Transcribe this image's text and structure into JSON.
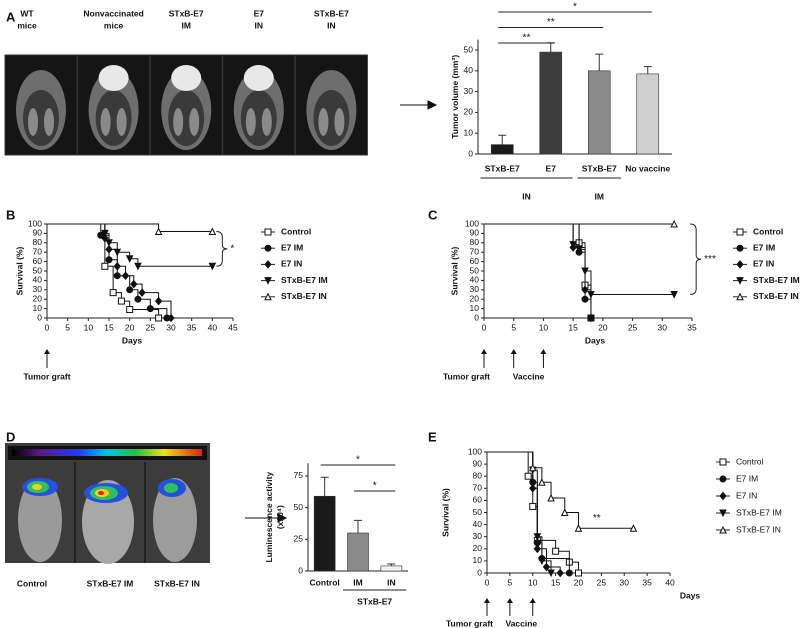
{
  "panel_labels": [
    "A",
    "B",
    "C",
    "D",
    "E"
  ],
  "mri_headers": [
    [
      "WT",
      "mice"
    ],
    [
      "Nonvaccinated",
      "mice"
    ],
    [
      "STxB-E7",
      "IM"
    ],
    [
      "E7",
      "IN"
    ],
    [
      "STxB-E7",
      "IN"
    ]
  ],
  "luminescence_labels": [
    "Control",
    "STxB-E7 IM",
    "STxB-E7 IN"
  ],
  "chart_data": [
    {
      "type": "bar",
      "y_label": "Tumor volume (mm³)",
      "categories": [
        "STxB-E7",
        "E7",
        "STxB-E7",
        "No vaccine"
      ],
      "values": [
        4.5,
        49,
        40,
        38.5
      ],
      "errors": [
        4.5,
        4.5,
        8,
        3.5
      ],
      "colors": [
        "#1a1a1a",
        "#3d3d3d",
        "#8a8a8a",
        "#cfcfcf"
      ],
      "ylim": [
        0,
        55
      ],
      "yticks": [
        0,
        10,
        20,
        30,
        40,
        50
      ],
      "group_labels": [
        {
          "label": "IN",
          "categories": [
            0,
            1
          ]
        },
        {
          "label": "IM",
          "categories": [
            2,
            2
          ]
        }
      ],
      "comparisons": [
        {
          "label": "**",
          "bars": [
            0,
            1
          ]
        },
        {
          "label": "**",
          "bars": [
            0,
            2
          ]
        },
        {
          "label": "*",
          "bars": [
            0,
            3
          ]
        }
      ]
    },
    {
      "type": "line",
      "x_label": "Days",
      "y_label": "Survival (%)",
      "xlim": [
        0,
        45
      ],
      "xticks": [
        0,
        5,
        10,
        15,
        20,
        25,
        30,
        35,
        40,
        45
      ],
      "ylim": [
        0,
        100
      ],
      "yticks": [
        0,
        10,
        20,
        30,
        40,
        50,
        60,
        70,
        80,
        90,
        100
      ],
      "series": [
        {
          "name": "Control",
          "marker": "open-square",
          "x": [
            0,
            14,
            14,
            16,
            16,
            18,
            18,
            20,
            20,
            27,
            27
          ],
          "values": [
            100,
            100,
            55,
            55,
            27,
            27,
            18,
            18,
            9,
            9,
            0
          ]
        },
        {
          "name": "E7 IM",
          "marker": "circle",
          "x": [
            0,
            13,
            13,
            15,
            15,
            17,
            17,
            20,
            20,
            22,
            22,
            25,
            25,
            29,
            29
          ],
          "values": [
            100,
            100,
            88,
            88,
            62,
            62,
            45,
            45,
            30,
            30,
            20,
            20,
            10,
            10,
            0
          ]
        },
        {
          "name": "E7 IN",
          "marker": "diamond",
          "x": [
            0,
            14,
            14,
            15,
            15,
            17,
            17,
            19,
            19,
            21,
            21,
            23,
            23,
            27,
            27,
            30,
            30
          ],
          "values": [
            100,
            100,
            85,
            85,
            73,
            73,
            55,
            55,
            45,
            45,
            36,
            36,
            27,
            27,
            18,
            18,
            0
          ]
        },
        {
          "name": "STxB-E7 IM",
          "marker": "triangle-down",
          "x": [
            0,
            14,
            14,
            15,
            15,
            17,
            17,
            20,
            20,
            22,
            22,
            40
          ],
          "values": [
            100,
            100,
            90,
            90,
            80,
            80,
            70,
            70,
            63,
            63,
            55,
            55
          ]
        },
        {
          "name": "STxB-E7 IN",
          "marker": "open-triangle",
          "x": [
            0,
            27,
            27,
            40
          ],
          "values": [
            100,
            100,
            92,
            92
          ]
        }
      ],
      "significance": {
        "label": "*",
        "series": [
          4,
          3
        ]
      },
      "events": [
        {
          "label": "Tumor graft",
          "days": [
            0
          ]
        }
      ]
    },
    {
      "type": "line",
      "x_label": "Days",
      "y_label": "Survival (%)",
      "xlim": [
        0,
        35
      ],
      "xticks": [
        0,
        5,
        10,
        15,
        20,
        25,
        30,
        35
      ],
      "ylim": [
        0,
        100
      ],
      "yticks": [
        0,
        10,
        20,
        30,
        40,
        50,
        60,
        70,
        80,
        90,
        100
      ],
      "series": [
        {
          "name": "Control",
          "marker": "open-square",
          "x": [
            0,
            16,
            16,
            17,
            17,
            18,
            18
          ],
          "values": [
            100,
            100,
            80,
            80,
            35,
            35,
            0
          ]
        },
        {
          "name": "E7 IM",
          "marker": "circle",
          "x": [
            0,
            16,
            16,
            17,
            17,
            18,
            18
          ],
          "values": [
            100,
            100,
            70,
            70,
            20,
            20,
            0
          ]
        },
        {
          "name": "E7 IN",
          "marker": "diamond",
          "x": [
            0,
            15,
            15,
            17,
            17,
            18,
            18
          ],
          "values": [
            100,
            100,
            75,
            75,
            30,
            30,
            0
          ]
        },
        {
          "name": "STxB-E7 IM",
          "marker": "triangle-down",
          "x": [
            0,
            15,
            15,
            16,
            16,
            17,
            17,
            18,
            18,
            32
          ],
          "values": [
            100,
            100,
            78,
            78,
            73,
            73,
            50,
            50,
            25,
            25
          ]
        },
        {
          "name": "STxB-E7 IN",
          "marker": "open-triangle",
          "x": [
            0,
            32
          ],
          "values": [
            100,
            100
          ]
        }
      ],
      "significance": {
        "label": "***",
        "series": [
          4,
          3
        ]
      },
      "events": [
        {
          "label": "Tumor graft",
          "days": [
            0
          ]
        },
        {
          "label": "Vaccine",
          "days": [
            5,
            10
          ]
        }
      ]
    },
    {
      "type": "bar",
      "y_label": [
        "Luminescence  activity",
        "(x10⁴)"
      ],
      "categories": [
        "Control",
        "IM",
        "IN"
      ],
      "values": [
        59,
        30,
        4
      ],
      "errors": [
        15,
        10,
        1.5
      ],
      "colors": [
        "#1a1a1a",
        "#8a8a8a",
        "#f2f2f2"
      ],
      "ylim": [
        0,
        85
      ],
      "yticks": [
        0,
        25,
        50,
        75
      ],
      "group_labels": [
        {
          "label": "STxB-E7",
          "categories": [
            1,
            2
          ]
        }
      ],
      "comparisons": [
        {
          "label": "*",
          "bars": [
            1,
            2
          ]
        },
        {
          "label": "*",
          "bars": [
            0,
            2
          ]
        }
      ]
    },
    {
      "type": "line",
      "x_label": "Days",
      "y_label": "Survival (%)",
      "xlim": [
        0,
        40
      ],
      "xticks": [
        0,
        5,
        10,
        15,
        20,
        25,
        30,
        35,
        40
      ],
      "ylim": [
        0,
        100
      ],
      "yticks": [
        0,
        10,
        20,
        30,
        40,
        50,
        60,
        70,
        80,
        90,
        100
      ],
      "series": [
        {
          "name": "Control",
          "marker": "open-square",
          "x": [
            0,
            9,
            9,
            10,
            10,
            11,
            11,
            15,
            15,
            18,
            18,
            20,
            20
          ],
          "values": [
            100,
            100,
            80,
            80,
            55,
            55,
            27,
            27,
            18,
            18,
            9,
            9,
            0
          ]
        },
        {
          "name": "E7 IM",
          "marker": "circle",
          "x": [
            0,
            10,
            10,
            11,
            11,
            12,
            12,
            18,
            18
          ],
          "values": [
            100,
            100,
            75,
            75,
            25,
            25,
            12,
            12,
            0
          ]
        },
        {
          "name": "E7 IN",
          "marker": "diamond",
          "x": [
            0,
            10,
            10,
            11,
            11,
            13,
            13,
            16,
            16
          ],
          "values": [
            100,
            100,
            70,
            70,
            20,
            20,
            5,
            5,
            0
          ]
        },
        {
          "name": "STxB-E7 IM",
          "marker": "triangle-down",
          "x": [
            0,
            10,
            10,
            11,
            11,
            12,
            12,
            14,
            14
          ],
          "values": [
            100,
            100,
            85,
            85,
            30,
            30,
            10,
            10,
            0
          ]
        },
        {
          "name": "STxB-E7 IN",
          "marker": "open-triangle",
          "x": [
            0,
            10,
            10,
            12,
            12,
            14,
            14,
            17,
            17,
            20,
            20,
            32
          ],
          "values": [
            100,
            100,
            87,
            87,
            75,
            75,
            62,
            62,
            50,
            50,
            37,
            37
          ]
        }
      ],
      "annotations": [
        {
          "text": "**",
          "x": 24,
          "y": 45
        }
      ],
      "events": [
        {
          "label": "Tumor graft",
          "days": [
            0
          ]
        },
        {
          "label": "Vaccine",
          "days": [
            5,
            10
          ]
        }
      ]
    }
  ]
}
